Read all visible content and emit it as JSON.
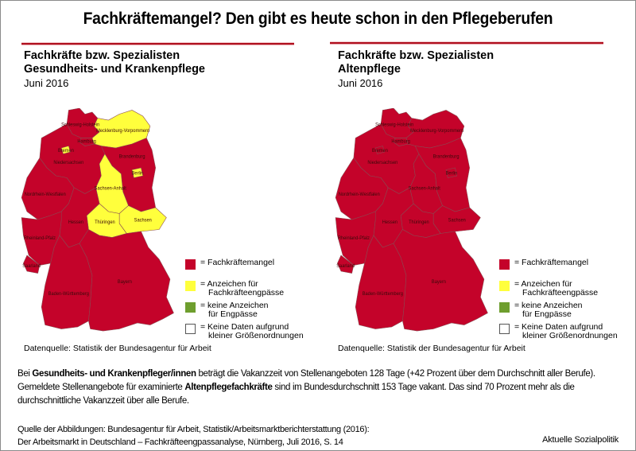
{
  "title": "Fachkräftemangel? Den gibt es heute schon in den Pflegeberufen",
  "colors": {
    "fachkraeftemangel": "#c4032a",
    "anzeichen": "#ffff3c",
    "keine_anzeichen": "#6e9e2e",
    "keine_daten": "#ffffff",
    "rule": "#b0101f",
    "border": "#8a8a8a"
  },
  "panels": [
    {
      "title_line1": "Fachkräfte bzw. Spezialisten",
      "title_line2": "Gesundheits- und Krankenpflege",
      "date": "Juni 2016",
      "source": "Datenquelle: Statistik der Bundesagentur für Arbeit",
      "states": {
        "Schleswig-Holstein": "mangel",
        "Hamburg": "mangel",
        "Mecklenburg-Vorpommern": "anzeichen",
        "Bremen": "anzeichen",
        "Niedersachsen": "mangel",
        "Brandenburg": "mangel",
        "Berlin": "anzeichen",
        "Sachsen-Anhalt": "anzeichen",
        "Nordrhein-Westfalen": "mangel",
        "Sachsen": "anzeichen",
        "Thüringen": "anzeichen",
        "Hessen": "mangel",
        "Rheinland-Pfalz": "mangel",
        "Saarland": "mangel",
        "Bayern": "mangel",
        "Baden-Württemberg": "mangel"
      }
    },
    {
      "title_line1": "Fachkräfte bzw. Spezialisten",
      "title_line2": "Altenpflege",
      "date": "Juni 2016",
      "source": "Datenquelle: Statistik der Bundesagentur für Arbeit",
      "states": {
        "Schleswig-Holstein": "mangel",
        "Hamburg": "mangel",
        "Mecklenburg-Vorpommern": "mangel",
        "Bremen": "mangel",
        "Niedersachsen": "mangel",
        "Brandenburg": "mangel",
        "Berlin": "mangel",
        "Sachsen-Anhalt": "mangel",
        "Nordrhein-Westfalen": "mangel",
        "Sachsen": "mangel",
        "Thüringen": "mangel",
        "Hessen": "mangel",
        "Rheinland-Pfalz": "mangel",
        "Saarland": "mangel",
        "Bayern": "mangel",
        "Baden-Württemberg": "mangel"
      }
    }
  ],
  "legend": [
    {
      "key": "mangel",
      "line1": "= Fachkräftemangel",
      "line2": ""
    },
    {
      "key": "anzeichen",
      "line1": "= Anzeichen für",
      "line2": "Fachkräfteengpässe"
    },
    {
      "key": "keine_anzeichen",
      "line1": "= keine Anzeichen",
      "line2": "für Engpässe"
    },
    {
      "key": "keine_daten",
      "line1": "= Keine Daten aufgrund",
      "line2": "kleiner Größenordnungen"
    }
  ],
  "body": {
    "p1_a": "Bei ",
    "p1_b": "Gesundheits- und Krankenpfleger/innen",
    "p1_c": " beträgt die Vakanzzeit von Stellenangeboten 128 Tage (+42 Prozent über dem Durchschnitt aller Berufe). Gemeldete Stellenangebote für examinierte ",
    "p1_d": "Altenpflegefachkräfte",
    "p1_e": " sind im Bundesdurchschnitt 153 Tage vakant. Das sind 70 Prozent mehr als die durchschnittliche Vakanzzeit über alle Berufe."
  },
  "citation": {
    "line1": "Quelle der Abbildungen: Bundesagentur für Arbeit, Statistik/Arbeitsmarktberichterstattung (2016):",
    "line2": "Der Arbeitsmarkt in Deutschland – Fachkräfteengpassanalyse, Nürnberg, Juli 2016, S. 14"
  },
  "publisher": "Aktuelle Sozialpolitik",
  "chart_data": [
    {
      "type": "choropleth",
      "title": "Fachkräfte bzw. Spezialisten – Gesundheits- und Krankenpflege, Juni 2016",
      "categories": [
        "Fachkräftemangel",
        "Anzeichen für Fachkräfteengpässe",
        "keine Anzeichen für Engpässe",
        "Keine Daten aufgrund kleiner Größenordnungen"
      ],
      "regions": {
        "Fachkräftemangel": [
          "Schleswig-Holstein",
          "Hamburg",
          "Niedersachsen",
          "Brandenburg",
          "Nordrhein-Westfalen",
          "Hessen",
          "Rheinland-Pfalz",
          "Saarland",
          "Bayern",
          "Baden-Württemberg"
        ],
        "Anzeichen für Fachkräfteengpässe": [
          "Mecklenburg-Vorpommern",
          "Bremen",
          "Berlin",
          "Sachsen-Anhalt",
          "Sachsen",
          "Thüringen"
        ],
        "keine Anzeichen für Engpässe": [],
        "Keine Daten aufgrund kleiner Größenordnungen": []
      }
    },
    {
      "type": "choropleth",
      "title": "Fachkräfte bzw. Spezialisten – Altenpflege, Juni 2016",
      "categories": [
        "Fachkräftemangel",
        "Anzeichen für Fachkräfteengpässe",
        "keine Anzeichen für Engpässe",
        "Keine Daten aufgrund kleiner Größenordnungen"
      ],
      "regions": {
        "Fachkräftemangel": [
          "Schleswig-Holstein",
          "Hamburg",
          "Mecklenburg-Vorpommern",
          "Bremen",
          "Niedersachsen",
          "Brandenburg",
          "Berlin",
          "Sachsen-Anhalt",
          "Nordrhein-Westfalen",
          "Sachsen",
          "Thüringen",
          "Hessen",
          "Rheinland-Pfalz",
          "Saarland",
          "Bayern",
          "Baden-Württemberg"
        ],
        "Anzeichen für Fachkräfteengpässe": [],
        "keine Anzeichen für Engpässe": [],
        "Keine Daten aufgrund kleiner Größenordnungen": []
      }
    }
  ]
}
